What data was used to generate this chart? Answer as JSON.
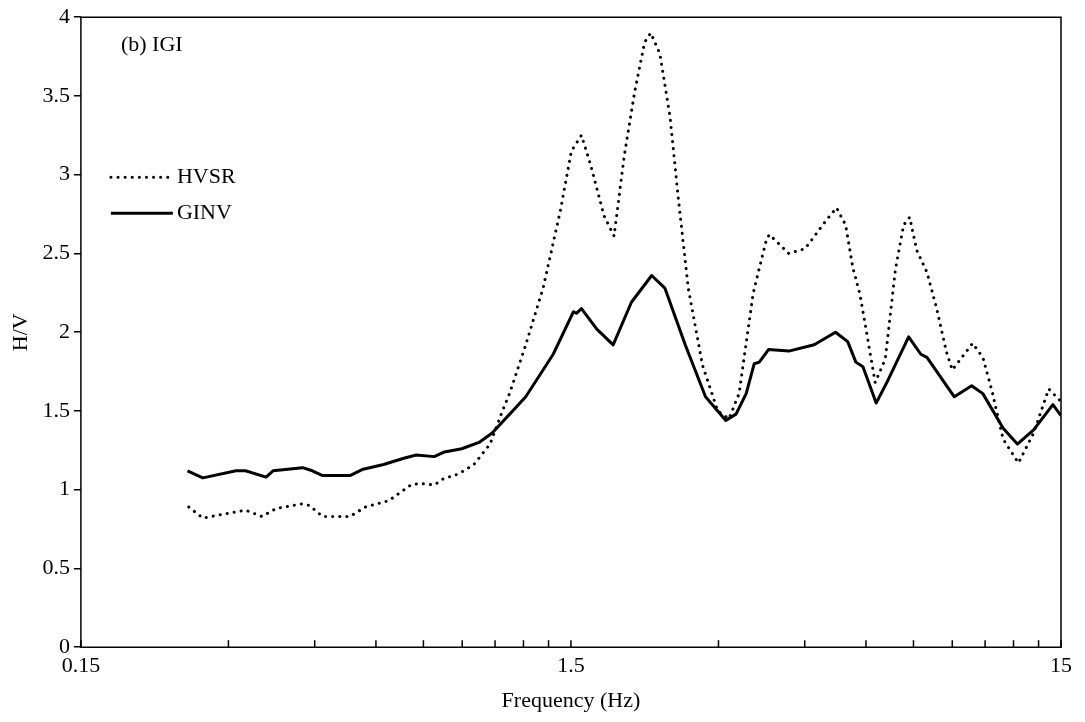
{
  "chart_data": {
    "type": "line",
    "annotations": [
      "(b) IGI"
    ],
    "xlabel": "Frequency (Hz)",
    "ylabel": "H/V",
    "log": "x",
    "grid": false,
    "legend": "top left",
    "marker": "none",
    "xlim": [
      0.15,
      15
    ],
    "xticks": [
      0.15,
      {
        "value": 0.3,
        "label": null
      },
      {
        "value": 0.45,
        "label": null
      },
      {
        "value": 0.6,
        "label": null
      },
      {
        "value": 0.75,
        "label": null
      },
      {
        "value": 0.9,
        "label": null
      },
      {
        "value": 1.05,
        "label": null
      },
      {
        "value": 1.2,
        "label": null
      },
      {
        "value": 1.35,
        "label": null
      },
      1.5,
      {
        "value": 3,
        "label": null
      },
      {
        "value": 4.5,
        "label": null
      },
      {
        "value": 6,
        "label": null
      },
      {
        "value": 7.5,
        "label": null
      },
      {
        "value": 9,
        "label": null
      },
      {
        "value": 10.5,
        "label": null
      },
      {
        "value": 12,
        "label": null
      },
      {
        "value": 13.5,
        "label": null
      },
      15
    ],
    "ylim": [
      0,
      4
    ],
    "yticks": [
      0,
      0.5,
      1,
      1.5,
      2,
      2.5,
      3,
      3.5,
      4
    ],
    "series": [
      {
        "name": "HVSR",
        "color": "#000000",
        "line_style": "dotted",
        "x": [
          0.249,
          0.266,
          0.3,
          0.325,
          0.351,
          0.375,
          0.423,
          0.439,
          0.467,
          0.531,
          0.571,
          0.637,
          0.707,
          0.735,
          0.789,
          0.824,
          0.885,
          0.951,
          1.026,
          1.087,
          1.124,
          1.213,
          1.316,
          1.427,
          1.503,
          1.576,
          1.646,
          1.752,
          1.837,
          1.927,
          2.022,
          2.12,
          2.182,
          2.277,
          2.389,
          2.482,
          2.603,
          2.783,
          2.99,
          3.151,
          3.305,
          3.533,
          3.759,
          3.813,
          4.174,
          4.506,
          5.005,
          5.225,
          5.454,
          5.64,
          5.832,
          6.0,
          6.264,
          6.57,
          6.891,
          7.16,
          7.367,
          7.618,
          7.99,
          8.379,
          8.747,
          8.999,
          9.903,
          10.39,
          10.84,
          11.43,
          12.28,
          13.19,
          14.16,
          15
        ],
        "values": [
          0.89,
          0.82,
          0.85,
          0.87,
          0.83,
          0.88,
          0.91,
          0.9,
          0.83,
          0.83,
          0.89,
          0.93,
          1.03,
          1.04,
          1.03,
          1.07,
          1.1,
          1.16,
          1.29,
          1.5,
          1.61,
          1.92,
          2.28,
          2.77,
          3.15,
          3.25,
          3.06,
          2.74,
          2.61,
          3.12,
          3.52,
          3.84,
          3.9,
          3.77,
          3.37,
          2.86,
          2.28,
          1.79,
          1.5,
          1.45,
          1.61,
          2.25,
          2.59,
          2.62,
          2.5,
          2.53,
          2.72,
          2.79,
          2.68,
          2.41,
          2.24,
          2.02,
          1.68,
          1.83,
          2.4,
          2.68,
          2.73,
          2.52,
          2.38,
          2.14,
          1.88,
          1.76,
          1.93,
          1.84,
          1.63,
          1.32,
          1.17,
          1.36,
          1.64,
          1.56
        ]
      },
      {
        "name": "GINV",
        "color": "#000000",
        "line_style": "solid",
        "x": [
          0.2475,
          0.266,
          0.311,
          0.325,
          0.358,
          0.37,
          0.425,
          0.445,
          0.467,
          0.531,
          0.565,
          0.622,
          0.684,
          0.725,
          0.789,
          0.828,
          0.898,
          0.974,
          1.036,
          1.213,
          1.38,
          1.518,
          1.539,
          1.576,
          1.694,
          1.829,
          1.993,
          2.192,
          2.332,
          2.566,
          2.823,
          3.105,
          3.258,
          3.417,
          3.549,
          3.635,
          3.795,
          4.174,
          4.704,
          5.2,
          5.506,
          5.721,
          5.915,
          6.294,
          6.664,
          7.332,
          7.764,
          7.99,
          9.087,
          9.857,
          10.39,
          11.43,
          12.22,
          13.19,
          14.44,
          15
        ],
        "values": [
          1.12,
          1.075,
          1.12,
          1.12,
          1.08,
          1.12,
          1.14,
          1.12,
          1.09,
          1.09,
          1.13,
          1.16,
          1.2,
          1.22,
          1.21,
          1.24,
          1.26,
          1.3,
          1.36,
          1.59,
          1.86,
          2.13,
          2.12,
          2.15,
          2.02,
          1.92,
          2.19,
          2.36,
          2.28,
          1.92,
          1.59,
          1.44,
          1.48,
          1.61,
          1.8,
          1.81,
          1.89,
          1.88,
          1.92,
          2.0,
          1.94,
          1.81,
          1.78,
          1.55,
          1.7,
          1.97,
          1.86,
          1.84,
          1.59,
          1.66,
          1.61,
          1.39,
          1.29,
          1.38,
          1.54,
          1.47
        ]
      }
    ]
  }
}
